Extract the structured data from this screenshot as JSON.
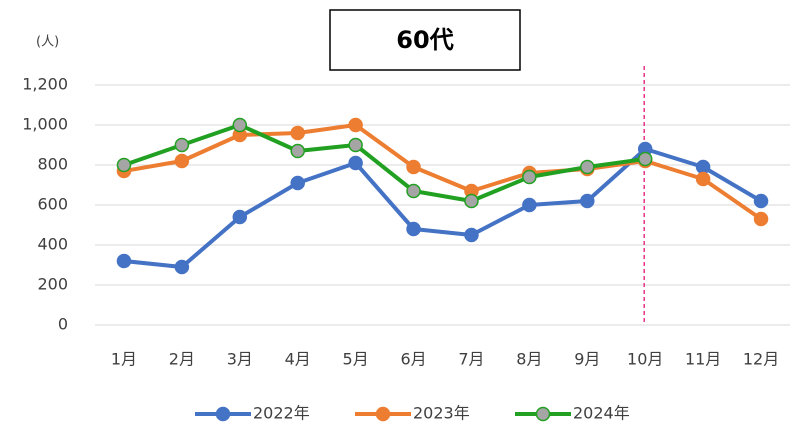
{
  "chart_data": {
    "type": "line",
    "title": "60代",
    "y_label": "(人)",
    "categories": [
      "1月",
      "2月",
      "3月",
      "4月",
      "5月",
      "6月",
      "7月",
      "8月",
      "9月",
      "10月",
      "11月",
      "12月"
    ],
    "series": [
      {
        "name": "2022年",
        "color": "#4472c4",
        "marker_color": "#4472c4",
        "values": [
          320,
          290,
          540,
          710,
          810,
          480,
          450,
          600,
          620,
          880,
          790,
          620
        ]
      },
      {
        "name": "2023年",
        "color": "#ed7d31",
        "marker_color": "#ed7d31",
        "values": [
          770,
          820,
          950,
          960,
          1000,
          790,
          670,
          760,
          780,
          820,
          730,
          530
        ]
      },
      {
        "name": "2024年",
        "color": "#22a022",
        "marker_color": "#a5a5a5",
        "values": [
          800,
          900,
          1000,
          870,
          900,
          670,
          620,
          740,
          790,
          830,
          null,
          null
        ]
      }
    ],
    "ylim": [
      0,
      1200
    ],
    "yticks": [
      0,
      200,
      400,
      600,
      800,
      {
        "value": 1000,
        "label": "1,000"
      },
      {
        "value": 1200,
        "label": "1,200"
      }
    ],
    "grid": true
  }
}
